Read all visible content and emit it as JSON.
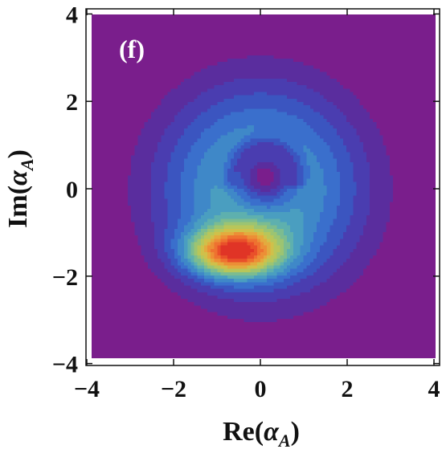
{
  "chart_data": {
    "type": "contour",
    "panel_label": "(f)",
    "xlabel": "Re(α_A)",
    "ylabel": "Im(α_A)",
    "xlim": [
      -4.2,
      4.2
    ],
    "ylim": [
      -4.2,
      4.2
    ],
    "x_ticks": [
      -4,
      -2,
      0,
      2,
      4
    ],
    "y_ticks": [
      -4,
      -2,
      0,
      2,
      4
    ],
    "x_tick_labels": [
      "−4",
      "−2",
      "0",
      "2",
      "4"
    ],
    "y_tick_labels": [
      "−4",
      "−2",
      "0",
      "2",
      "4"
    ],
    "background_color": "#7a1e8c",
    "contour_fill_colors": [
      "#5a2d9e",
      "#4a3db0",
      "#3b55c0",
      "#3a6fcc",
      "#3f88c8",
      "#4a9ec0",
      "#5eb0ae",
      "#7cbc90",
      "#9cc472",
      "#b8c65a",
      "#d0c04a",
      "#e3aa3e",
      "#ec8f36",
      "#ee7230",
      "#e9502a",
      "#e03426"
    ],
    "features": {
      "outer_radius": 3.1,
      "central_dip_center": [
        0.1,
        0.25
      ],
      "peak_center": [
        -0.6,
        -1.45
      ]
    }
  }
}
